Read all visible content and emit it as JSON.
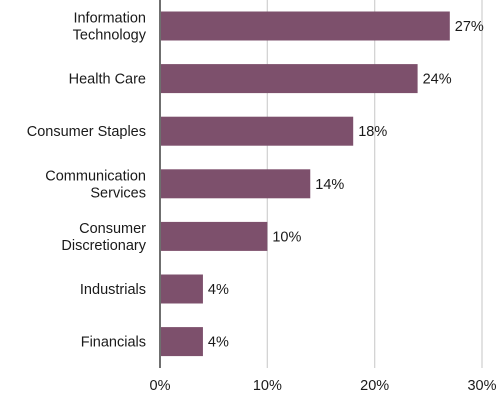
{
  "chart_data": {
    "type": "bar",
    "orientation": "horizontal",
    "categories": [
      "Information Technology",
      "Health Care",
      "Consumer Staples",
      "Communication Services",
      "Consumer Discretionary",
      "Industrials",
      "Financials"
    ],
    "category_lines": [
      [
        "Information",
        "Technology"
      ],
      [
        "Health Care"
      ],
      [
        "Consumer Staples"
      ],
      [
        "Communication",
        "Services"
      ],
      [
        "Consumer",
        "Discretionary"
      ],
      [
        "Industrials"
      ],
      [
        "Financials"
      ]
    ],
    "values": [
      27,
      24,
      18,
      14,
      10,
      4,
      4
    ],
    "value_labels": [
      "27%",
      "24%",
      "18%",
      "14%",
      "10%",
      "4%",
      "4%"
    ],
    "x_ticks": [
      0,
      10,
      20,
      30
    ],
    "x_tick_labels": [
      "0%",
      "10%",
      "20%",
      "30%"
    ],
    "xlim": [
      0,
      30
    ],
    "grid": true,
    "legend": "none",
    "colors": {
      "bar": "#7d506c",
      "grid": "#d3d3d3",
      "axis": "#6f6f6f",
      "text": "#1a1a1a"
    }
  }
}
